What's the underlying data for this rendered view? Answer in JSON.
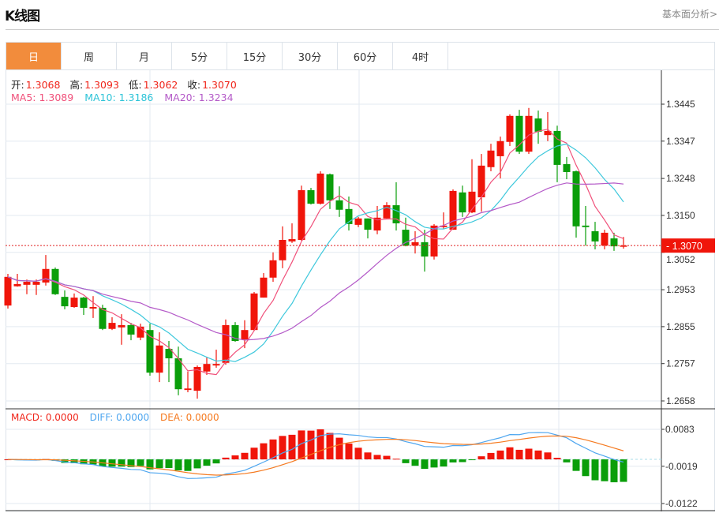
{
  "header": {
    "title": "K线图",
    "link": "基本面分析>"
  },
  "tabs": [
    {
      "label": "日",
      "active": true
    },
    {
      "label": "周"
    },
    {
      "label": "月"
    },
    {
      "label": "5分"
    },
    {
      "label": "15分"
    },
    {
      "label": "30分"
    },
    {
      "label": "60分"
    },
    {
      "label": "4时"
    }
  ],
  "ohlc_legend": {
    "open_label": "开:",
    "open": "1.3068",
    "high_label": "高:",
    "high": "1.3093",
    "low_label": "低:",
    "low": "1.3062",
    "close_label": "收:",
    "close": "1.3070"
  },
  "ma_legend": {
    "ma5": "MA5: 1.3089",
    "ma10": "MA10: 1.3186",
    "ma20": "MA20: 1.3234"
  },
  "macd_legend": {
    "macd": "MACD: 0.0000",
    "diff": "DIFF: 0.0000",
    "dea": "DEA: 0.0000"
  },
  "colors": {
    "up": "#f0150a",
    "down": "#0a9e0a",
    "ma5": "#f0507a",
    "ma10": "#3ec8dc",
    "ma20": "#b45ac8",
    "diff": "#4ea6ef",
    "dea": "#f57a20",
    "accent": "#F28C3C"
  },
  "chart_data": {
    "type": "candlestick",
    "price_axis": {
      "ticks": [
        "1.3445",
        "1.3347",
        "1.3248",
        "1.3150",
        "1.3052",
        "1.2953",
        "1.2855",
        "1.2757",
        "1.2658"
      ],
      "range": [
        1.2658,
        1.3445
      ]
    },
    "current_price": "1.3070",
    "macd_axis": {
      "ticks": [
        "0.0083",
        "-0.0019",
        "-0.0122"
      ],
      "range": [
        -0.0122,
        0.0083
      ]
    },
    "ohlc": [
      [
        1.2911,
        1.2995,
        1.2903,
        1.2987
      ],
      [
        1.2962,
        1.2995,
        1.2961,
        1.2968
      ],
      [
        1.2966,
        1.298,
        1.2941,
        1.2974
      ],
      [
        1.2966,
        1.298,
        1.2939,
        1.2974
      ],
      [
        1.2972,
        1.3045,
        1.2964,
        1.3008
      ],
      [
        1.3008,
        1.3012,
        1.2939,
        1.2941
      ],
      [
        1.2934,
        1.2951,
        1.2901,
        1.2909
      ],
      [
        1.2907,
        1.2943,
        1.2905,
        1.2932
      ],
      [
        1.2932,
        1.2934,
        1.2886,
        1.2905
      ],
      [
        1.2903,
        1.2936,
        1.2878,
        1.2907
      ],
      [
        1.2905,
        1.2913,
        1.2846,
        1.2849
      ],
      [
        1.2849,
        1.288,
        1.2846,
        1.2865
      ],
      [
        1.2853,
        1.2888,
        1.2807,
        1.2859
      ],
      [
        1.2859,
        1.2865,
        1.2819,
        1.2834
      ],
      [
        1.2826,
        1.2863,
        1.2819,
        1.2855
      ],
      [
        1.2846,
        1.2863,
        1.2725,
        1.2733
      ],
      [
        1.2733,
        1.284,
        1.2708,
        1.2805
      ],
      [
        1.2796,
        1.2817,
        1.2708,
        1.2771
      ],
      [
        1.2771,
        1.2802,
        1.2673,
        1.2689
      ],
      [
        1.2687,
        1.2736,
        1.2681,
        1.2691
      ],
      [
        1.2685,
        1.2752,
        1.2664,
        1.2748
      ],
      [
        1.2736,
        1.2773,
        1.2727,
        1.2756
      ],
      [
        1.2752,
        1.2794,
        1.2746,
        1.2756
      ],
      [
        1.2759,
        1.2874,
        1.2754,
        1.2859
      ],
      [
        1.2859,
        1.2867,
        1.2815,
        1.2817
      ],
      [
        1.2821,
        1.2872,
        1.2798,
        1.2846
      ],
      [
        1.2846,
        1.2947,
        1.2844,
        1.2943
      ],
      [
        1.2932,
        1.2997,
        1.2932,
        1.2985
      ],
      [
        1.2985,
        1.3052,
        1.2974,
        1.3031
      ],
      [
        1.3031,
        1.3121,
        1.301,
        1.3085
      ],
      [
        1.3081,
        1.3129,
        1.3077,
        1.3087
      ],
      [
        1.3085,
        1.3229,
        1.3083,
        1.3217
      ],
      [
        1.3217,
        1.3223,
        1.3179,
        1.3181
      ],
      [
        1.3181,
        1.3267,
        1.3179,
        1.3261
      ],
      [
        1.3259,
        1.3261,
        1.3167,
        1.319
      ],
      [
        1.319,
        1.3227,
        1.3146,
        1.3165
      ],
      [
        1.3167,
        1.32,
        1.311,
        1.3127
      ],
      [
        1.3125,
        1.3146,
        1.3119,
        1.3142
      ],
      [
        1.3142,
        1.3142,
        1.3089,
        1.3112
      ],
      [
        1.311,
        1.3175,
        1.31,
        1.3144
      ],
      [
        1.3142,
        1.3185,
        1.3142,
        1.3177
      ],
      [
        1.3177,
        1.3238,
        1.311,
        1.3129
      ],
      [
        1.3112,
        1.3144,
        1.3068,
        1.307
      ],
      [
        1.307,
        1.3108,
        1.3049,
        1.3079
      ],
      [
        1.3079,
        1.3112,
        1.3001,
        1.3041
      ],
      [
        1.3041,
        1.3127,
        1.3033,
        1.3123
      ],
      [
        1.3119,
        1.3158,
        1.3114,
        1.3123
      ],
      [
        1.3112,
        1.3219,
        1.3112,
        1.3215
      ],
      [
        1.3211,
        1.3229,
        1.3146,
        1.3158
      ],
      [
        1.3158,
        1.3299,
        1.3156,
        1.3213
      ],
      [
        1.3198,
        1.3313,
        1.316,
        1.3282
      ],
      [
        1.3278,
        1.334,
        1.3267,
        1.3322
      ],
      [
        1.3307,
        1.3359,
        1.3248,
        1.3347
      ],
      [
        1.3345,
        1.3418,
        1.3334,
        1.3414
      ],
      [
        1.3414,
        1.343,
        1.3313,
        1.3319
      ],
      [
        1.3319,
        1.3435,
        1.3313,
        1.3414
      ],
      [
        1.3407,
        1.3428,
        1.334,
        1.3372
      ],
      [
        1.3363,
        1.3424,
        1.3347,
        1.3374
      ],
      [
        1.3374,
        1.3388,
        1.3238,
        1.3284
      ],
      [
        1.3286,
        1.3305,
        1.3246,
        1.3265
      ],
      [
        1.3267,
        1.3269,
        1.3091,
        1.3121
      ],
      [
        1.3123,
        1.3175,
        1.307,
        1.3119
      ],
      [
        1.3108,
        1.3133,
        1.306,
        1.3081
      ],
      [
        1.307,
        1.3112,
        1.306,
        1.3104
      ],
      [
        1.3089,
        1.3104,
        1.3056,
        1.3068
      ],
      [
        1.3068,
        1.3093,
        1.3062,
        1.307
      ]
    ]
  }
}
